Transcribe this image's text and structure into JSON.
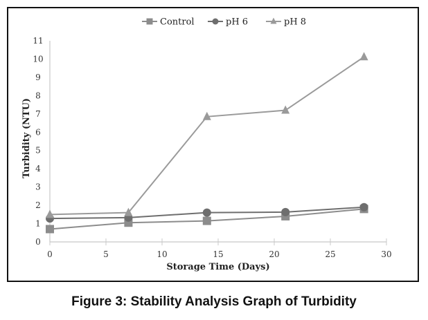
{
  "caption": "Figure 3: Stability Analysis Graph of Turbidity",
  "chart_data": {
    "type": "line",
    "title": "",
    "xlabel": "Storage Time (Days)",
    "ylabel": "Turbidity (NTU)",
    "xlim": [
      0,
      30
    ],
    "ylim": [
      0,
      11
    ],
    "xticks": [
      0,
      5,
      10,
      15,
      20,
      25,
      30
    ],
    "yticks": [
      0,
      1,
      2,
      3,
      4,
      5,
      6,
      7,
      8,
      9,
      10,
      11
    ],
    "legend_position": "top-center",
    "grid": false,
    "x": [
      0,
      7,
      14,
      21,
      28
    ],
    "series": [
      {
        "name": "Control",
        "marker": "square",
        "color": "#8c8c8c",
        "values": [
          0.7,
          1.05,
          1.15,
          1.4,
          1.8
        ]
      },
      {
        "name": "pH 6",
        "marker": "circle",
        "color": "#6e6e6e",
        "values": [
          1.28,
          1.33,
          1.6,
          1.63,
          1.9
        ]
      },
      {
        "name": "pH 8",
        "marker": "triangle",
        "color": "#9a9a9a",
        "values": [
          1.5,
          1.6,
          6.85,
          7.2,
          10.12
        ]
      }
    ]
  }
}
